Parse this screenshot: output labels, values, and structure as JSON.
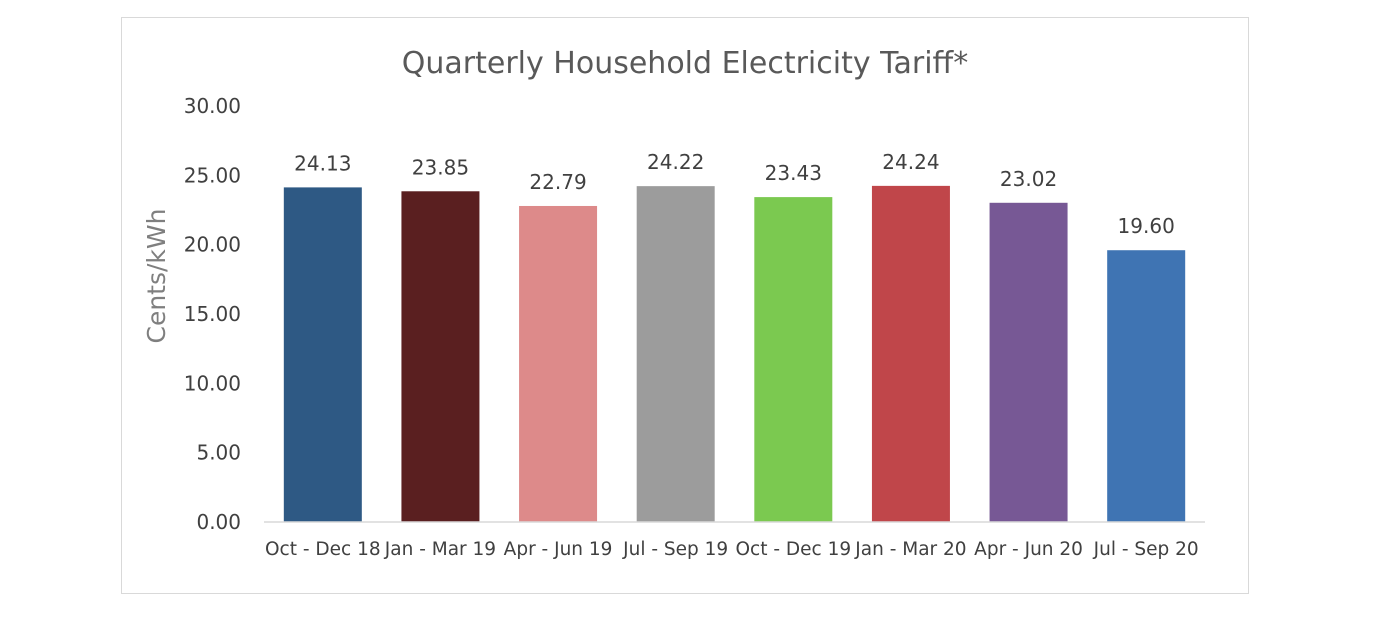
{
  "chart_data": {
    "type": "bar",
    "title": "Quarterly Household Electricity Tariff*",
    "xlabel": "",
    "ylabel": "Cents/kWh",
    "ylim": [
      0,
      30
    ],
    "yticks": [
      "0.00",
      "5.00",
      "10.00",
      "15.00",
      "20.00",
      "25.00",
      "30.00"
    ],
    "grid": false,
    "legend": "none",
    "categories": [
      "Oct - Dec 18",
      "Jan - Mar 19",
      "Apr - Jun 19",
      "Jul - Sep 19",
      "Oct - Dec 19",
      "Jan - Mar 20",
      "Apr - Jun 20",
      "Jul - Sep 20"
    ],
    "values": [
      24.13,
      23.85,
      22.79,
      24.22,
      23.43,
      24.24,
      23.02,
      19.6
    ],
    "data_labels": [
      "24.13",
      "23.85",
      "22.79",
      "24.22",
      "23.43",
      "24.24",
      "23.02",
      "19.60"
    ],
    "colors": [
      "#2e5984",
      "#5a1f20",
      "#dd8a8a",
      "#9c9c9c",
      "#7bc950",
      "#c0464a",
      "#775895",
      "#3f74b3"
    ],
    "axis_color": "#d9d9d9"
  }
}
